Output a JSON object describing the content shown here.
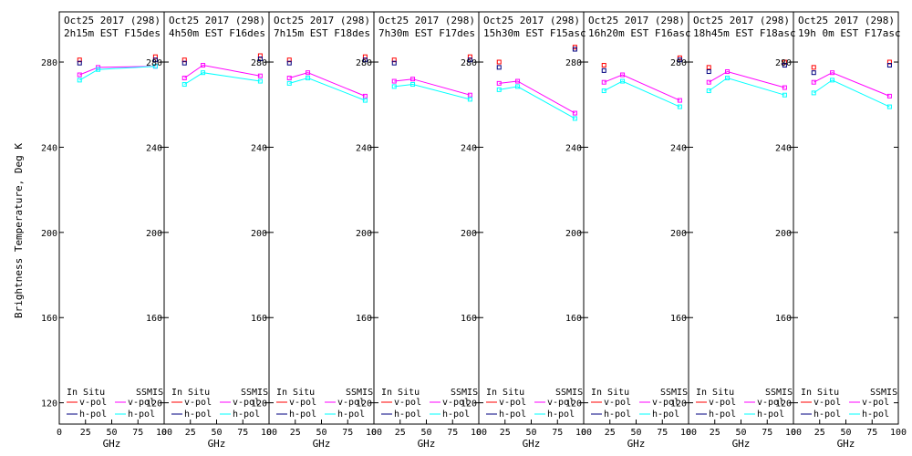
{
  "chart_data": {
    "type": "line",
    "ylabel": "Brightness Temperature, Deg K",
    "xlabel": "GHz",
    "ylim": [
      110,
      295
    ],
    "yticks": [
      120,
      160,
      200,
      240,
      280
    ],
    "xticks": [
      0,
      25,
      50,
      75,
      100
    ],
    "xtick_labels": [
      "0",
      "25",
      "50",
      "75",
      "100"
    ],
    "x_display_positions": [
      0,
      0.5,
      1,
      1.5,
      2
    ],
    "legend": {
      "insitu_header": "In Situ",
      "ssmis_header": "SSMIS",
      "vpol": "v-pol",
      "hpol": "h-pol"
    },
    "colors": {
      "insitu_v": "#ff0000",
      "insitu_h": "#000080",
      "ssmis_v": "#ff00ff",
      "ssmis_h": "#00ffff"
    },
    "panels": [
      {
        "title1": "Oct25 2017 (298)",
        "title2": "2h15m  EST F15des",
        "ssmis_freq": [
          19.35,
          37,
          91.655
        ],
        "ssmis_v": [
          274,
          277.5,
          278
        ],
        "ssmis_h": [
          271.5,
          276.5,
          278
        ],
        "insitu_freq": [
          19.35,
          91.655
        ],
        "insitu_v": [
          281,
          282.5
        ],
        "insitu_h": [
          279.5,
          281
        ]
      },
      {
        "title1": "Oct25 2017 (298)",
        "title2": "4h50m  EST F16des",
        "ssmis_freq": [
          19.35,
          37,
          91.655
        ],
        "ssmis_v": [
          272.5,
          278.5,
          273.5
        ],
        "ssmis_h": [
          269.5,
          275,
          271
        ],
        "insitu_freq": [
          19.35,
          91.655
        ],
        "insitu_v": [
          281,
          283
        ],
        "insitu_h": [
          279.5,
          281.5
        ]
      },
      {
        "title1": "Oct25 2017 (298)",
        "title2": "7h15m  EST F18des",
        "ssmis_freq": [
          19.35,
          37,
          91.655
        ],
        "ssmis_v": [
          272.5,
          275,
          264
        ],
        "ssmis_h": [
          270,
          272.5,
          262
        ],
        "insitu_freq": [
          19.35,
          91.655
        ],
        "insitu_v": [
          281,
          282.5
        ],
        "insitu_h": [
          279.5,
          281
        ]
      },
      {
        "title1": "Oct25 2017 (298)",
        "title2": "7h30m  EST F17des",
        "ssmis_freq": [
          19.35,
          37,
          91.655
        ],
        "ssmis_v": [
          271,
          272,
          264.5
        ],
        "ssmis_h": [
          268.5,
          269.5,
          262.5
        ],
        "insitu_freq": [
          19.35,
          91.655
        ],
        "insitu_v": [
          281,
          282.5
        ],
        "insitu_h": [
          279.5,
          281
        ]
      },
      {
        "title1": "Oct25 2017 (298)",
        "title2": "15h30m  EST F15asc",
        "ssmis_freq": [
          19.35,
          37,
          91.655
        ],
        "ssmis_v": [
          270,
          271,
          256
        ],
        "ssmis_h": [
          267,
          268.5,
          253.5
        ],
        "insitu_freq": [
          19.35,
          91.655
        ],
        "insitu_v": [
          280,
          287
        ],
        "insitu_h": [
          277.5,
          286
        ]
      },
      {
        "title1": "Oct25 2017 (298)",
        "title2": "16h20m  EST F16asc",
        "ssmis_freq": [
          19.35,
          37,
          91.655
        ],
        "ssmis_v": [
          270.5,
          274,
          262
        ],
        "ssmis_h": [
          266.5,
          271,
          259
        ],
        "insitu_freq": [
          19.35,
          91.655
        ],
        "insitu_v": [
          278.5,
          282
        ],
        "insitu_h": [
          276,
          281
        ]
      },
      {
        "title1": "Oct25 2017 (298)",
        "title2": "18h45m  EST F18asc",
        "ssmis_freq": [
          19.35,
          37,
          91.655
        ],
        "ssmis_v": [
          270.5,
          275.5,
          268
        ],
        "ssmis_h": [
          266.5,
          272.5,
          264.5
        ],
        "insitu_freq": [
          19.35,
          91.655
        ],
        "insitu_v": [
          277.5,
          280
        ],
        "insitu_h": [
          275.5,
          278.5
        ]
      },
      {
        "title1": "Oct25 2017 (298)",
        "title2": "19h 0m  EST F17asc",
        "ssmis_freq": [
          19.35,
          37,
          91.655
        ],
        "ssmis_v": [
          270.5,
          275,
          264
        ],
        "ssmis_h": [
          265.5,
          271.5,
          259
        ],
        "insitu_freq": [
          19.35,
          91.655
        ],
        "insitu_v": [
          277.5,
          280
        ],
        "insitu_h": [
          275,
          278.5
        ]
      }
    ]
  }
}
